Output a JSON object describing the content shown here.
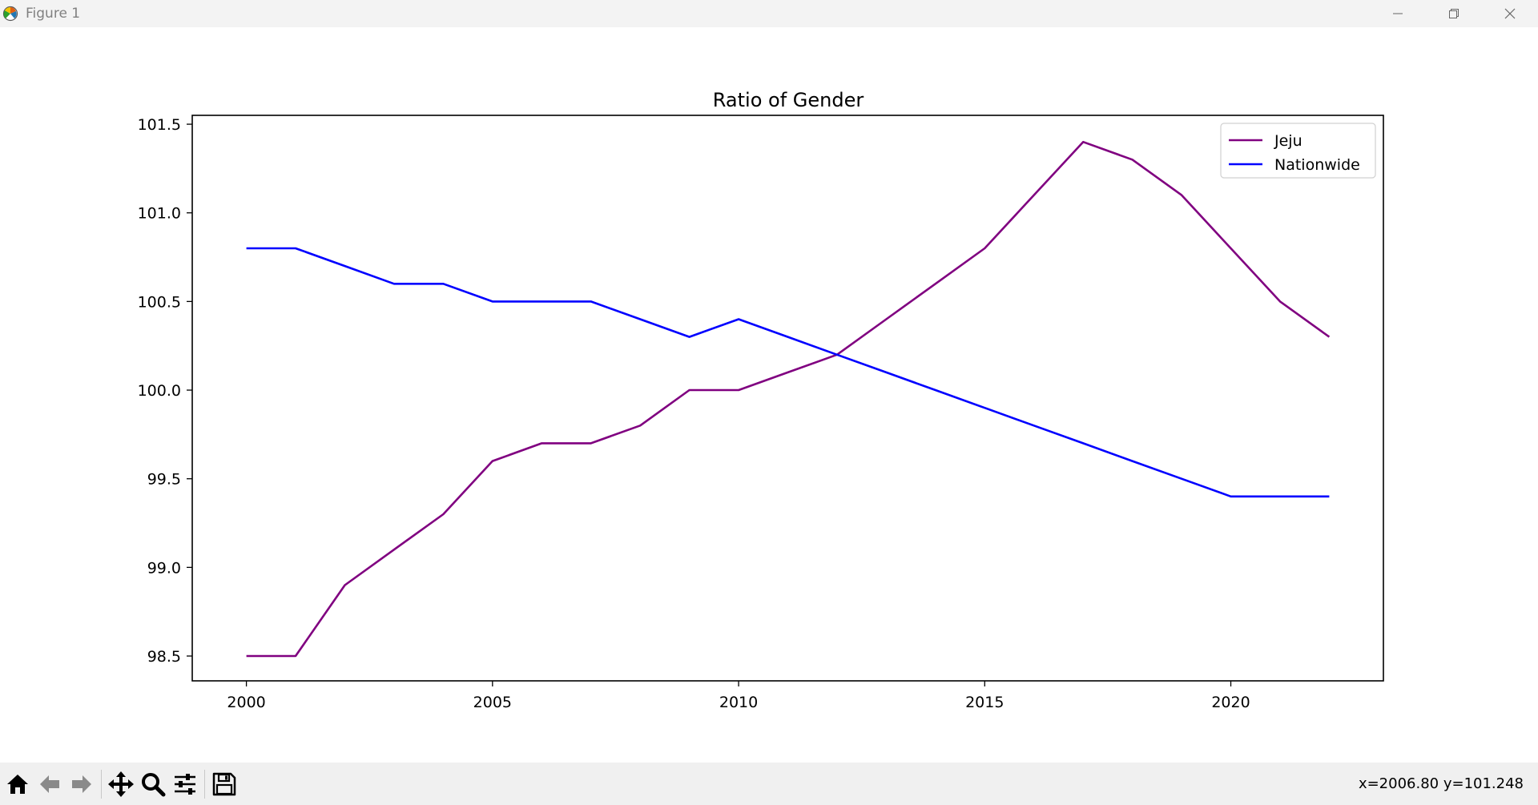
{
  "window": {
    "title": "Figure 1",
    "icons": {
      "app": "matplotlib-logo-icon",
      "minimize": "minimize-icon",
      "restore": "restore-icon",
      "close": "close-icon"
    }
  },
  "toolbar": {
    "buttons": [
      {
        "name": "home-icon"
      },
      {
        "name": "back-arrow-icon"
      },
      {
        "name": "forward-arrow-icon"
      },
      {
        "name": "pan-icon"
      },
      {
        "name": "zoom-icon"
      },
      {
        "name": "configure-subplots-icon"
      },
      {
        "name": "save-icon"
      }
    ],
    "coords": "x=2006.80 y=101.248"
  },
  "chart_data": {
    "type": "line",
    "title": "Ratio of Gender",
    "xlabel": "",
    "ylabel": "",
    "xlim": [
      1998.9,
      2023.1
    ],
    "ylim": [
      98.36,
      101.55
    ],
    "xticks": [
      2000,
      2005,
      2010,
      2015,
      2020
    ],
    "yticks": [
      98.5,
      99.0,
      99.5,
      100.0,
      100.5,
      101.0,
      101.5
    ],
    "ytick_labels": [
      "98.5",
      "99.0",
      "99.5",
      "100.0",
      "100.5",
      "101.0",
      "101.5"
    ],
    "grid": false,
    "legend": "top-right",
    "x": [
      2000,
      2001,
      2002,
      2003,
      2004,
      2005,
      2006,
      2007,
      2008,
      2009,
      2010,
      2011,
      2012,
      2013,
      2014,
      2015,
      2016,
      2017,
      2018,
      2019,
      2020,
      2021,
      2022
    ],
    "series": [
      {
        "name": "Jeju",
        "color": "#800080",
        "values": [
          98.5,
          98.5,
          98.9,
          99.1,
          99.3,
          99.6,
          99.7,
          99.7,
          99.8,
          100.0,
          100.0,
          100.1,
          100.2,
          100.4,
          100.6,
          100.8,
          101.1,
          101.4,
          101.3,
          101.1,
          100.8,
          100.5,
          100.3
        ]
      },
      {
        "name": "Nationwide",
        "color": "#0000ff",
        "values": [
          100.8,
          100.8,
          100.7,
          100.6,
          100.6,
          100.5,
          100.5,
          100.5,
          100.4,
          100.3,
          100.4,
          100.3,
          100.2,
          100.1,
          100.0,
          99.9,
          99.8,
          99.7,
          99.6,
          99.5,
          99.4,
          99.4,
          99.4
        ]
      }
    ]
  }
}
